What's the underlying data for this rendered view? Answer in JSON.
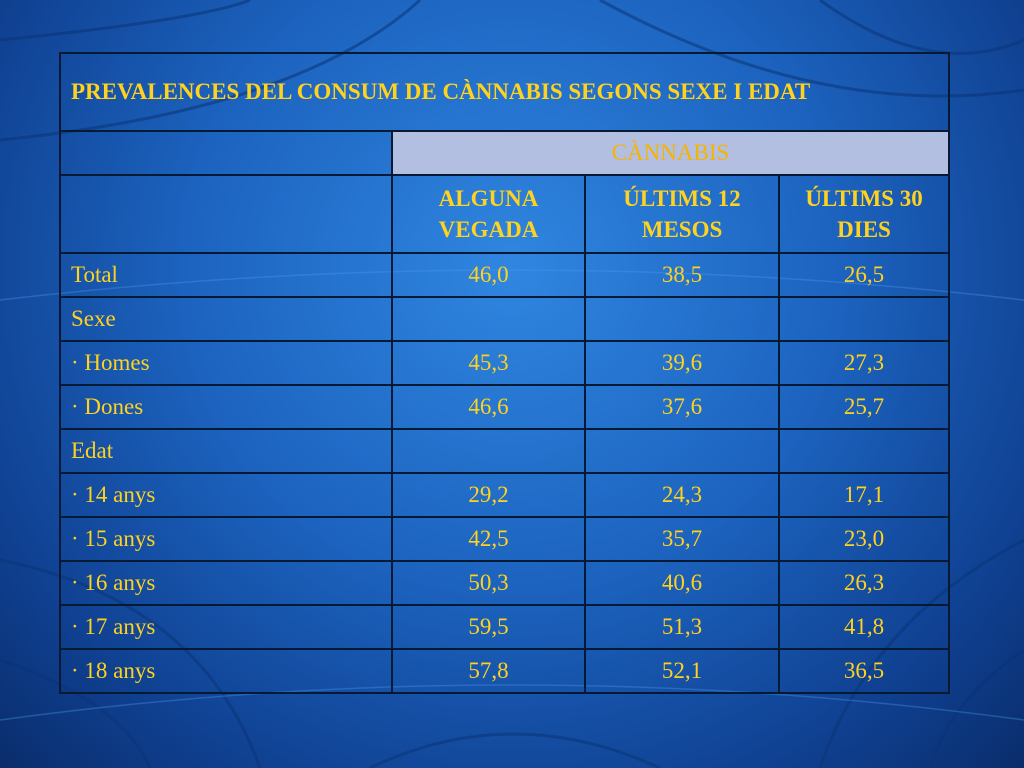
{
  "table": {
    "title": "PREVALENCES DEL CONSUM DE CÀNNABIS SEGONS SEXE I EDAT",
    "group_header": "CÀNNABIS",
    "columns": [
      "ALGUNA VEGADA",
      "ÚLTIMS 12 MESOS",
      "ÚLTIMS 30 DIES"
    ],
    "rows": [
      {
        "label": "Total",
        "values": [
          "46,0",
          "38,5",
          "26,5"
        ]
      },
      {
        "label": "Sexe",
        "values": [
          "",
          "",
          ""
        ]
      },
      {
        "label": "· Homes",
        "values": [
          "45,3",
          "39,6",
          "27,3"
        ]
      },
      {
        "label": "· Dones",
        "values": [
          "46,6",
          "37,6",
          "25,7"
        ]
      },
      {
        "label": "Edat",
        "values": [
          "",
          "",
          ""
        ]
      },
      {
        "label": "· 14 anys",
        "values": [
          "29,2",
          "24,3",
          "17,1"
        ]
      },
      {
        "label": "· 15 anys",
        "values": [
          "42,5",
          "35,7",
          "23,0"
        ]
      },
      {
        "label": "· 16 anys",
        "values": [
          "50,3",
          "40,6",
          "26,3"
        ]
      },
      {
        "label": "· 17 anys",
        "values": [
          "59,5",
          "51,3",
          "41,8"
        ]
      },
      {
        "label": "· 18 anys",
        "values": [
          "57,8",
          "52,1",
          "36,5"
        ]
      }
    ]
  },
  "colors": {
    "text": "#ffd21f",
    "header_fill": "#b3bfe0",
    "background": "#1c63bf"
  }
}
